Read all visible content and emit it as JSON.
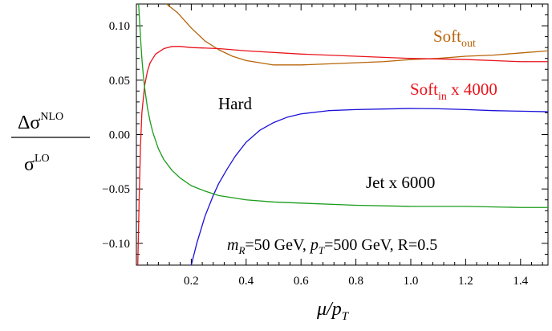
{
  "chart_data": {
    "type": "line",
    "title": "",
    "xlabel_main": "μ/p",
    "xlabel_sub": "T",
    "ylabel_num_main": "Δσ",
    "ylabel_num_sup": "NLO",
    "ylabel_den_main": "σ",
    "ylabel_den_sup": "LO",
    "xlim": [
      0.0,
      1.5
    ],
    "ylim": [
      -0.12,
      0.12
    ],
    "x_ticks": [
      0.2,
      0.4,
      0.6,
      0.8,
      1.0,
      1.2,
      1.4
    ],
    "x_tick_labels": [
      "0.2",
      "0.4",
      "0.6",
      "0.8",
      "1.0",
      "1.2",
      "1.4"
    ],
    "y_ticks": [
      0.1,
      0.05,
      0.0,
      -0.05,
      -0.1
    ],
    "y_tick_labels": [
      "0.10",
      "0.05",
      "0.00",
      "−0.05",
      "−0.10"
    ],
    "grid": false,
    "annotation": {
      "m_main": "m",
      "m_sub": "R",
      "m_val": "=50 GeV, ",
      "p_main": "p",
      "p_sub": "T",
      "p_val": "=500 GeV, R=0.5"
    },
    "series": [
      {
        "name": "Soft_out",
        "label_main": "Soft",
        "label_sub": "out",
        "color": "#b8650a",
        "x": [
          0.11,
          0.15,
          0.2,
          0.25,
          0.3,
          0.35,
          0.4,
          0.5,
          0.6,
          0.7,
          0.8,
          0.9,
          1.0,
          1.1,
          1.2,
          1.3,
          1.4,
          1.5
        ],
        "y": [
          0.12,
          0.112,
          0.098,
          0.086,
          0.078,
          0.072,
          0.068,
          0.064,
          0.064,
          0.065,
          0.066,
          0.067,
          0.069,
          0.07,
          0.072,
          0.073,
          0.075,
          0.077
        ]
      },
      {
        "name": "Soft_in x 4000",
        "label_main": "Soft",
        "label_sub": "in",
        "label_suffix": " x 4000",
        "color": "#e8141c",
        "x": [
          0.005,
          0.01,
          0.015,
          0.02,
          0.03,
          0.04,
          0.05,
          0.07,
          0.1,
          0.13,
          0.16,
          0.2,
          0.3,
          0.4,
          0.6,
          0.8,
          1.0,
          1.2,
          1.4,
          1.5
        ],
        "y": [
          -0.12,
          -0.06,
          -0.01,
          0.02,
          0.045,
          0.058,
          0.066,
          0.074,
          0.079,
          0.081,
          0.081,
          0.08,
          0.079,
          0.077,
          0.074,
          0.072,
          0.07,
          0.069,
          0.067,
          0.067
        ]
      },
      {
        "name": "Hard",
        "label_main": "Hard",
        "color": "#1a10d8",
        "x": [
          0.2,
          0.22,
          0.25,
          0.28,
          0.3,
          0.33,
          0.36,
          0.4,
          0.45,
          0.5,
          0.55,
          0.6,
          0.7,
          0.8,
          0.9,
          1.0,
          1.1,
          1.2,
          1.3,
          1.4,
          1.5
        ],
        "y": [
          -0.12,
          -0.1,
          -0.075,
          -0.056,
          -0.045,
          -0.032,
          -0.02,
          -0.007,
          0.004,
          0.011,
          0.016,
          0.019,
          0.022,
          0.023,
          0.0235,
          0.024,
          0.0237,
          0.023,
          0.022,
          0.0215,
          0.021
        ]
      },
      {
        "name": "Jet x 6000",
        "label_main": "Jet x 6000",
        "color": "#1a9c1a",
        "x": [
          0.008,
          0.012,
          0.016,
          0.02,
          0.025,
          0.03,
          0.04,
          0.05,
          0.06,
          0.08,
          0.1,
          0.13,
          0.16,
          0.2,
          0.25,
          0.3,
          0.4,
          0.5,
          0.6,
          0.8,
          1.0,
          1.2,
          1.4,
          1.5
        ],
        "y": [
          0.12,
          0.103,
          0.085,
          0.07,
          0.055,
          0.043,
          0.025,
          0.012,
          0.002,
          -0.013,
          -0.023,
          -0.033,
          -0.04,
          -0.047,
          -0.052,
          -0.056,
          -0.06,
          -0.062,
          -0.063,
          -0.065,
          -0.066,
          -0.066,
          -0.067,
          -0.067
        ]
      }
    ]
  }
}
